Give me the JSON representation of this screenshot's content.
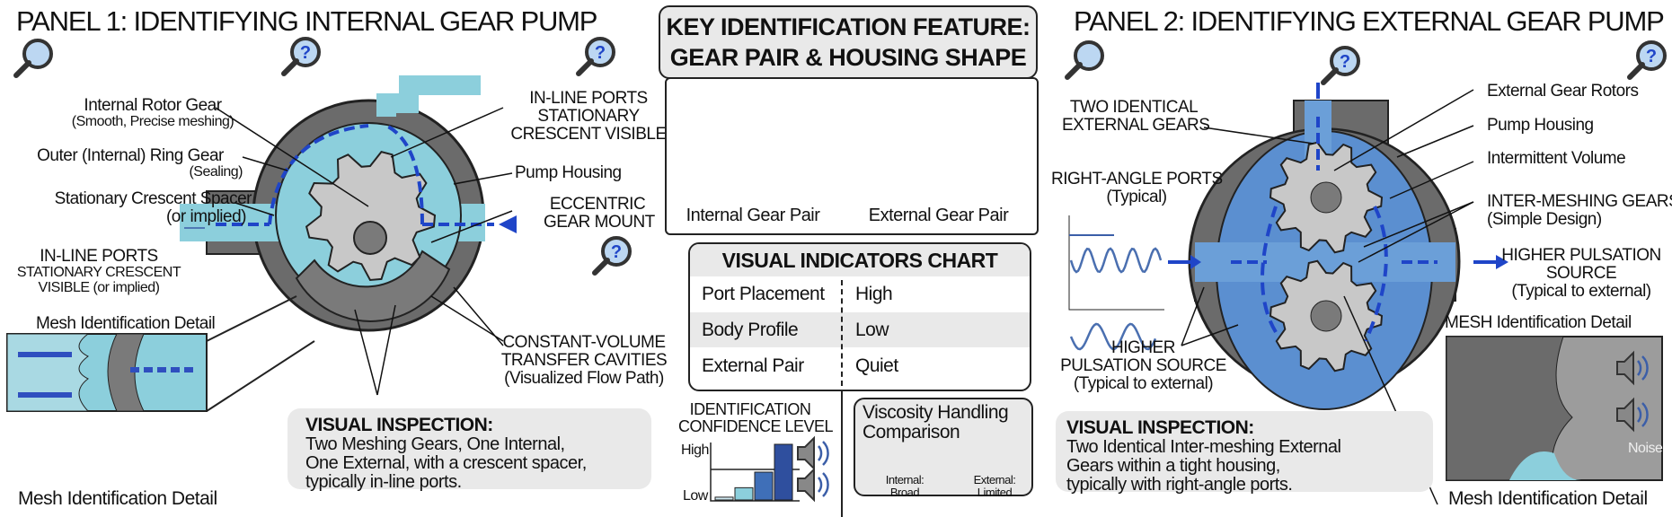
{
  "panel1": {
    "title": "PANEL 1: IDENTIFYING INTERNAL GEAR PUMP",
    "labels": {
      "internal_rotor": "Internal Rotor Gear",
      "internal_rotor_sub": "(Smooth, Precise meshing)",
      "outer_ring": "Outer (Internal) Ring Gear",
      "outer_ring_sub": "(Sealing)",
      "crescent": "Stationary Crescent Spacer",
      "crescent_sub": "(or implied)",
      "inline_ports": "IN-LINE PORTS",
      "inline_sub1": "STATIONARY CRESCENT",
      "inline_sub2": "VISIBLE (or implied)",
      "top_right_1": "IN-LINE PORTS",
      "top_right_2": "STATIONARY",
      "top_right_3": "CRESCENT VISIBLE",
      "pump_housing": "Pump Housing",
      "eccentric_1": "ECCENTRIC",
      "eccentric_2": "GEAR MOUNT",
      "cavities_1": "CONSTANT-VOLUME",
      "cavities_2": "TRANSFER CAVITIES",
      "cavities_3": "(Visualized Flow Path)",
      "mesh_detail_top": "Mesh Identification Detail",
      "mesh_detail_bottom": "Mesh Identification Detail"
    },
    "inspection": {
      "heading": "VISUAL INSPECTION:",
      "line1": "Two Meshing Gears, One Internal,",
      "line2": "One External, with a crescent spacer,",
      "line3": " typically in-line ports."
    }
  },
  "center": {
    "key_title_1": "KEY IDENTIFICATION FEATURE:",
    "key_title_2": "GEAR PAIR & HOUSING SHAPE",
    "internal_pair": "Internal Gear Pair",
    "external_pair": "External Gear Pair",
    "indicators": {
      "title": "VISUAL INDICATORS CHART",
      "rows": [
        {
          "label": "Port Placement",
          "value": "High"
        },
        {
          "label": "Body Profile",
          "value": "Low"
        },
        {
          "label": "External Pair",
          "value": "Quiet"
        }
      ]
    },
    "confidence": {
      "title_1": "IDENTIFICATION",
      "title_2": "CONFIDENCE LEVEL",
      "high": "High",
      "low": "Low",
      "bar_levels": [
        0.05,
        0.22,
        0.5,
        1.0
      ]
    },
    "viscosity": {
      "title_1": "Viscosity Handling",
      "title_2": "Comparison",
      "internal_1": "Internal:",
      "internal_2": "Broad",
      "external_1": "External:",
      "external_2": "Limited"
    }
  },
  "panel2": {
    "title": "PANEL 2: IDENTIFYING EXTERNAL GEAR PUMP",
    "labels": {
      "two_identical_1": "TWO IDENTICAL",
      "two_identical_2": "EXTERNAL GEARS",
      "right_angle_1": "RIGHT-ANGLE PORTS",
      "right_angle_2": "(Typical)",
      "rotors": "External Gear Rotors",
      "housing": "Pump Housing",
      "intermittent": "Intermittent Volume",
      "intermeshing_1": "INTER-MESHING GEARS",
      "intermeshing_2": "(Simple Design)",
      "pulsation_r1": "HIGHER PULSATION",
      "pulsation_r2": "SOURCE",
      "pulsation_r3": "(Typical to external)",
      "pulsation_l1": "HIGHER",
      "pulsation_l2": "PULSATION SOURCE",
      "pulsation_l3": "(Typical to external)",
      "mesh_detail_top": "MESH Identification Detail",
      "mesh_detail_bottom": "Mesh Identification Detail",
      "noise": "Noise"
    },
    "inspection": {
      "heading": "VISUAL INSPECTION:",
      "line1": "Two Identical Inter-meshing External",
      "line2": "Gears within a tight housing,",
      "line3": " typically with right-angle ports."
    }
  },
  "colors": {
    "fluid_light": "#8ccfdc",
    "fluid_blue": "#5b8fd0",
    "arrow": "#1f45c8",
    "gear": "#c8c8c8",
    "housing": "#6b6b6b",
    "box_grey": "#e9e9e9"
  },
  "icons": [
    "magnifier-question-icon",
    "speaker-icon",
    "gear-icon",
    "flow-arrow-icon"
  ]
}
